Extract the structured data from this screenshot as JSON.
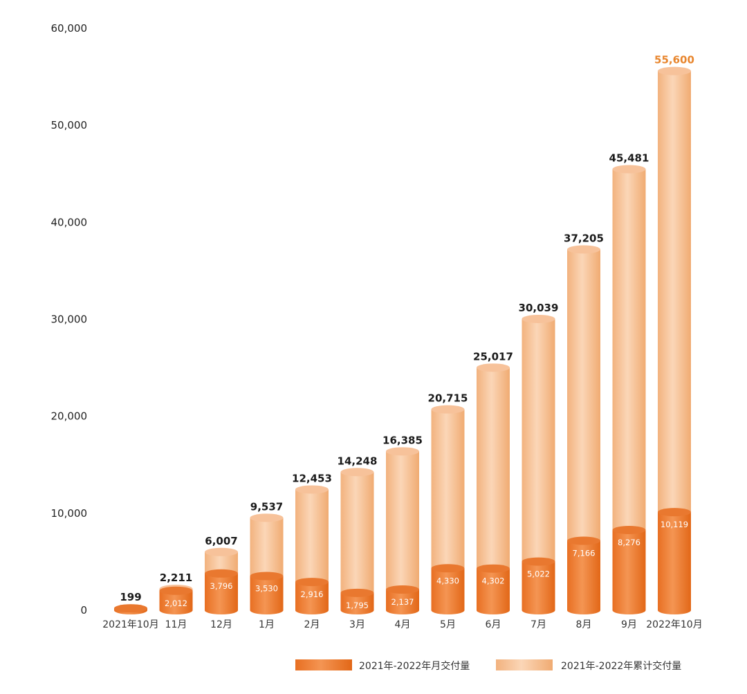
{
  "chart_data": {
    "type": "bar",
    "categories": [
      "2021年10月",
      "11月",
      "12月",
      "1月",
      "2月",
      "3月",
      "4月",
      "5月",
      "6月",
      "7月",
      "8月",
      "9月",
      "2022年10月"
    ],
    "series": [
      {
        "name": "2021年-2022年月交付量",
        "values": [
          199,
          2012,
          3796,
          3530,
          2916,
          1795,
          2137,
          4330,
          4302,
          5022,
          7166,
          8276,
          10119
        ],
        "labels": [
          "",
          "2,012",
          "3,796",
          "3,530",
          "2,916",
          "1,795",
          "2,137",
          "4,330",
          "4,302",
          "5,022",
          "7,166",
          "8,276",
          "10,119"
        ]
      },
      {
        "name": "2021年-2022年累计交付量",
        "values": [
          199,
          2211,
          6007,
          9537,
          12453,
          14248,
          16385,
          20715,
          25017,
          30039,
          37205,
          45481,
          55600
        ],
        "labels": [
          "199",
          "2,211",
          "6,007",
          "9,537",
          "12,453",
          "14,248",
          "16,385",
          "20,715",
          "25,017",
          "30,039",
          "37,205",
          "45,481",
          "55,600"
        ]
      }
    ],
    "yticks": [
      "0",
      "10,000",
      "20,000",
      "30,000",
      "40,000",
      "50,000",
      "60,000"
    ],
    "ylim": [
      0,
      60000
    ],
    "legend_position": "bottom-right",
    "grid": false,
    "colors": {
      "monthly_dark": "#e8742a",
      "monthly_light": "#f29a55",
      "cumulative_dark": "#f4b37f",
      "cumulative_light": "#fbd9bd",
      "highlight_label": "#e8862e"
    }
  }
}
